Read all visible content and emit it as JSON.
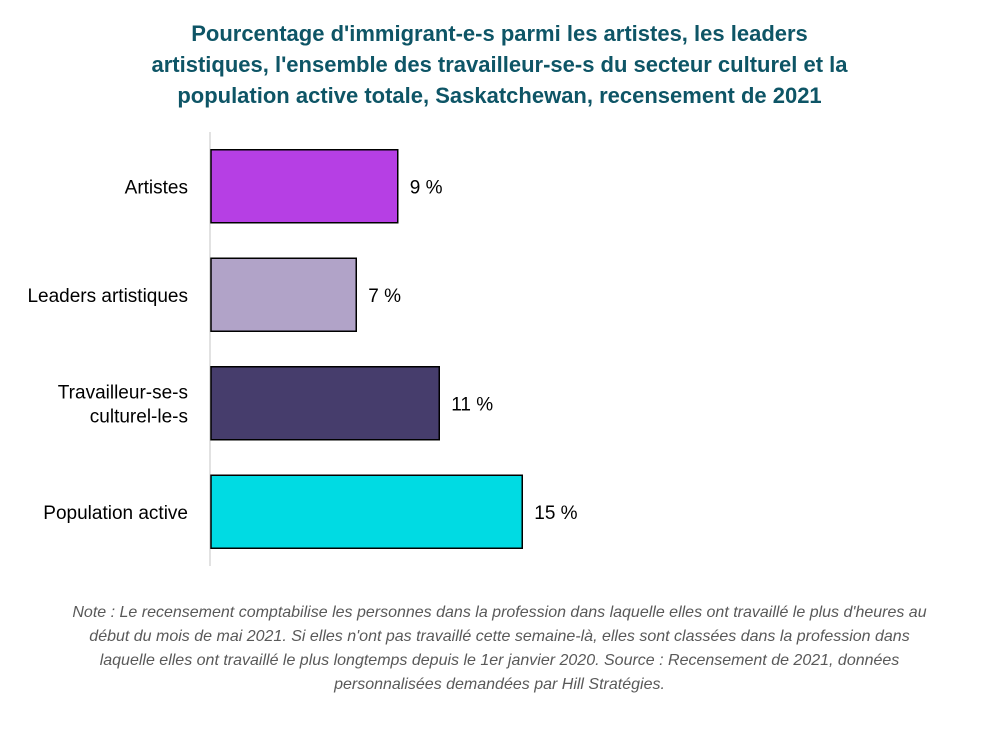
{
  "chart_data": {
    "type": "bar",
    "orientation": "horizontal",
    "title_lines": [
      "Pourcentage d'immigrant-e-s parmi les artistes, les leaders",
      "artistiques, l'ensemble des travailleur-se-s du secteur culturel et la",
      "population active totale, Saskatchewan, recensement de 2021"
    ],
    "categories": [
      {
        "lines": [
          "Artistes"
        ],
        "value": 9,
        "label": "9 %",
        "color": "#b63fe4"
      },
      {
        "lines": [
          "Leaders artistiques"
        ],
        "value": 7,
        "label": "7 %",
        "color": "#b1a3c8"
      },
      {
        "lines": [
          "Travailleur-se-s",
          "culturel-le-s"
        ],
        "value": 11,
        "label": "11 %",
        "color": "#463d6c"
      },
      {
        "lines": [
          "Population active"
        ],
        "value": 15,
        "label": "15 %",
        "color": "#00dbe3"
      }
    ],
    "xlim": [
      0,
      40
    ],
    "grid": false,
    "legend": "none"
  },
  "note_lines": [
    "Note : Le recensement comptabilise les personnes dans la profession dans laquelle elles ont travaillé le plus d'heures au",
    "début du mois de mai 2021. Si elles n'ont pas travaillé cette semaine-là, elles sont classées dans la profession dans",
    "laquelle elles ont travaillé le plus longtemps depuis le 1er janvier 2020. Source : Recensement de 2021, données",
    "personnalisées demandées par Hill Stratégies."
  ]
}
